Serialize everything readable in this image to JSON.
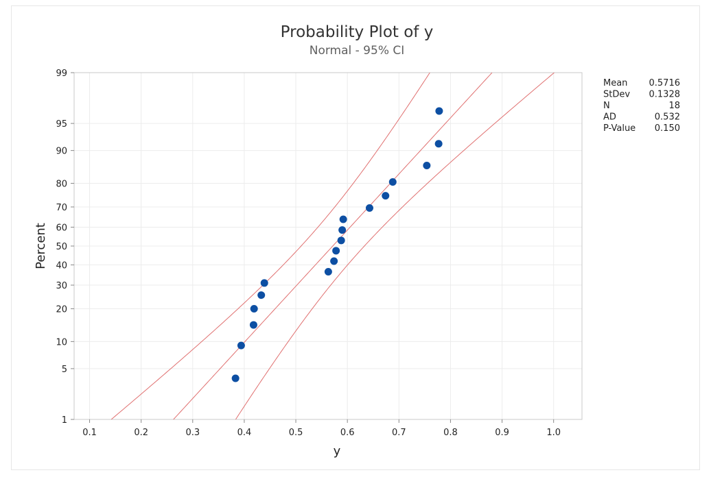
{
  "chart_data": {
    "type": "scatter",
    "title": "Probability Plot of y",
    "subtitle": "Normal - 95% CI",
    "xlabel": "y",
    "ylabel": "Percent",
    "xlim": [
      0.07,
      1.055
    ],
    "x_ticks": [
      0.1,
      0.2,
      0.3,
      0.4,
      0.5,
      0.6,
      0.7,
      0.8,
      0.9,
      1.0
    ],
    "x_tick_labels": [
      "0.1",
      "0.2",
      "0.3",
      "0.4",
      "0.5",
      "0.6",
      "0.7",
      "0.8",
      "0.9",
      "1.0"
    ],
    "y_scale": "normal-probability",
    "ylim": [
      1,
      99
    ],
    "y_ticks": [
      1,
      5,
      10,
      20,
      30,
      40,
      50,
      60,
      70,
      80,
      90,
      95,
      99
    ],
    "y_tick_labels": [
      "1",
      "5",
      "10",
      "20",
      "30",
      "40",
      "50",
      "60",
      "70",
      "80",
      "90",
      "95",
      "99"
    ],
    "grid": true,
    "points": [
      {
        "x": 0.383,
        "y": 3.8
      },
      {
        "x": 0.394,
        "y": 9.1
      },
      {
        "x": 0.418,
        "y": 14.5
      },
      {
        "x": 0.419,
        "y": 20.0
      },
      {
        "x": 0.433,
        "y": 25.5
      },
      {
        "x": 0.439,
        "y": 31.0
      },
      {
        "x": 0.563,
        "y": 36.5
      },
      {
        "x": 0.574,
        "y": 42.0
      },
      {
        "x": 0.578,
        "y": 47.5
      },
      {
        "x": 0.588,
        "y": 53.0
      },
      {
        "x": 0.59,
        "y": 58.5
      },
      {
        "x": 0.592,
        "y": 64.0
      },
      {
        "x": 0.643,
        "y": 69.5
      },
      {
        "x": 0.674,
        "y": 75.0
      },
      {
        "x": 0.688,
        "y": 80.5
      },
      {
        "x": 0.754,
        "y": 86.0
      },
      {
        "x": 0.777,
        "y": 91.5
      },
      {
        "x": 0.778,
        "y": 96.5
      }
    ],
    "fit": {
      "mean": 0.5716,
      "stdev": 0.1328,
      "n": 18
    },
    "point_color": "#0d4fa3",
    "line_color": "#e07070",
    "stats": [
      {
        "label": "Mean",
        "value": "0.5716"
      },
      {
        "label": "StDev",
        "value": "0.1328"
      },
      {
        "label": "N",
        "value": "18"
      },
      {
        "label": "AD",
        "value": "0.532"
      },
      {
        "label": "P-Value",
        "value": "0.150"
      }
    ]
  }
}
